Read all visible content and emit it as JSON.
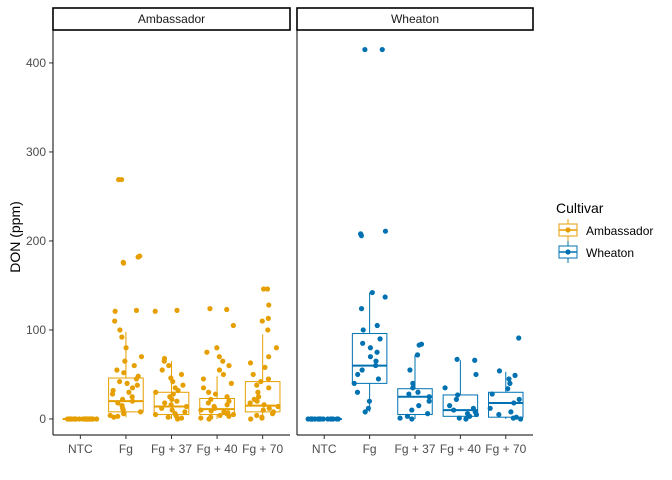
{
  "chart_data": {
    "type": "box",
    "ylabel": "DON (ppm)",
    "ylim": [
      -18,
      437
    ],
    "yticks": [
      0,
      100,
      200,
      300,
      400
    ],
    "categories": [
      "NTC",
      "Fg",
      "Fg + 37",
      "Fg + 40",
      "Fg + 70"
    ],
    "legend": {
      "title": "Cultivar",
      "placement": "right",
      "items": [
        "Ambassador",
        "Wheaton"
      ]
    },
    "panels": [
      {
        "name": "Ambassador",
        "color": "#E69F00",
        "boxes": [
          {
            "category": "NTC",
            "min": 0,
            "q1": 0,
            "median": 0,
            "q3": 0,
            "max": 0
          },
          {
            "category": "Fg",
            "min": 2,
            "q1": 8,
            "median": 20,
            "q3": 46,
            "max": 98
          },
          {
            "category": "Fg + 37",
            "min": 0,
            "q1": 5,
            "median": 14,
            "q3": 30,
            "max": 65
          },
          {
            "category": "Fg + 40",
            "min": 0,
            "q1": 5,
            "median": 11,
            "q3": 23,
            "max": 48
          },
          {
            "category": "Fg + 70",
            "min": 0,
            "q1": 8,
            "median": 15,
            "q3": 42,
            "max": 95
          }
        ],
        "points": [
          {
            "category": "NTC",
            "values": [
              0,
              0,
              0,
              0,
              0,
              0,
              0,
              0,
              0,
              0,
              0,
              0,
              0,
              0,
              0,
              0,
              0,
              0,
              0,
              0,
              0,
              0,
              0,
              0
            ]
          },
          {
            "category": "Fg",
            "values": [
              269,
              269,
              183,
              182,
              176,
              175,
              122,
              121,
              110,
              100,
              92,
              80,
              70,
              65,
              60,
              55,
              52,
              48,
              45,
              42,
              40,
              38,
              35,
              32,
              30,
              28,
              25,
              22,
              20,
              18,
              15,
              12,
              10,
              8,
              6,
              4,
              3,
              2
            ]
          },
          {
            "category": "Fg + 37",
            "values": [
              122,
              121,
              68,
              65,
              60,
              55,
              50,
              46,
              42,
              38,
              35,
              32,
              30,
              28,
              25,
              22,
              20,
              18,
              16,
              14,
              12,
              10,
              8,
              6,
              5,
              4,
              3,
              2,
              1,
              0
            ]
          },
          {
            "category": "Fg + 40",
            "values": [
              124,
              123,
              105,
              80,
              75,
              70,
              65,
              60,
              55,
              50,
              45,
              40,
              35,
              30,
              28,
              25,
              22,
              20,
              18,
              16,
              14,
              12,
              10,
              9,
              8,
              7,
              6,
              5,
              4,
              3,
              2,
              1,
              0
            ]
          },
          {
            "category": "Fg + 70",
            "values": [
              146,
              146,
              128,
              113,
              110,
              100,
              80,
              70,
              63,
              58,
              50,
              45,
              42,
              38,
              35,
              30,
              25,
              22,
              20,
              18,
              16,
              14,
              12,
              10,
              8,
              6,
              4,
              2,
              1,
              0
            ]
          }
        ]
      },
      {
        "name": "Wheaton",
        "color": "#0072B2",
        "boxes": [
          {
            "category": "NTC",
            "min": 0,
            "q1": 0,
            "median": 0,
            "q3": 0,
            "max": 0
          },
          {
            "category": "Fg",
            "min": 8,
            "q1": 40,
            "median": 60,
            "q3": 96,
            "max": 142
          },
          {
            "category": "Fg + 37",
            "min": 0,
            "q1": 5,
            "median": 25,
            "q3": 34,
            "max": 72
          },
          {
            "category": "Fg + 40",
            "min": 0,
            "q1": 3,
            "median": 10,
            "q3": 27,
            "max": 66
          },
          {
            "category": "Fg + 70",
            "min": 0,
            "q1": 2,
            "median": 18,
            "q3": 30,
            "max": 53
          }
        ],
        "points": [
          {
            "category": "NTC",
            "values": [
              0,
              0,
              0,
              0,
              0,
              0,
              0,
              0,
              0,
              0,
              0,
              0,
              0,
              0,
              0,
              0,
              0,
              0
            ]
          },
          {
            "category": "Fg",
            "values": [
              415,
              415,
              211,
              208,
              206,
              142,
              137,
              124,
              105,
              100,
              90,
              85,
              80,
              75,
              70,
              65,
              60,
              55,
              50,
              45,
              40,
              30,
              20,
              12,
              8
            ]
          },
          {
            "category": "Fg + 37",
            "values": [
              84,
              83,
              72,
              55,
              40,
              35,
              30,
              28,
              25,
              20,
              15,
              10,
              6,
              3,
              1,
              0
            ]
          },
          {
            "category": "Fg + 40",
            "values": [
              67,
              66,
              50,
              35,
              27,
              22,
              15,
              12,
              10,
              8,
              6,
              5,
              3,
              1,
              0
            ]
          },
          {
            "category": "Fg + 70",
            "values": [
              91,
              54,
              49,
              45,
              40,
              34,
              28,
              22,
              18,
              12,
              8,
              5,
              2,
              1,
              0
            ]
          }
        ]
      }
    ]
  }
}
